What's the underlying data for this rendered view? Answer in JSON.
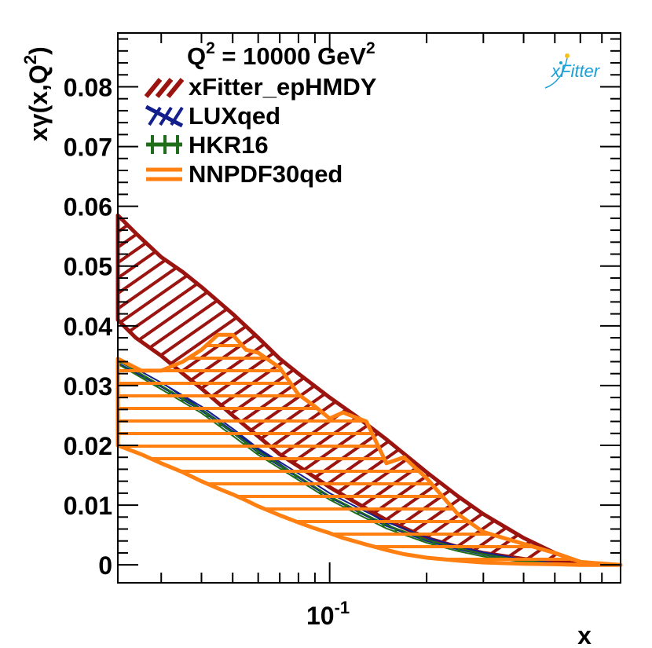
{
  "chart_data": {
    "type": "area",
    "title": "Q^2 = 10000 GeV^2",
    "title_parts": {
      "q": "Q",
      "exp": "2",
      "mid": " = 10000 GeV",
      "exp2": "2"
    },
    "xlabel": "x",
    "ylabel": {
      "base": "xγ(x,Q",
      "exp": "2",
      "close": ")"
    },
    "xscale": "log",
    "xlim": [
      0.022,
      0.8
    ],
    "ylim": [
      -0.003,
      0.089
    ],
    "yticks": [
      0,
      0.01,
      0.02,
      0.03,
      0.04,
      0.05,
      0.06,
      0.07,
      0.08
    ],
    "ytick_labels": [
      "0",
      "0.01",
      "0.02",
      "0.03",
      "0.04",
      "0.05",
      "0.06",
      "0.07",
      "0.08"
    ],
    "xtick_major_label": {
      "base": "10",
      "exp": "-1"
    },
    "legend_position": "top-left",
    "logo": {
      "x": "x",
      "rest": "Fitter"
    },
    "series": [
      {
        "name": "xFitter_epHMDY",
        "color": "#9b1410",
        "hatch": "diagonal",
        "x": [
          0.022,
          0.025,
          0.03,
          0.035,
          0.04,
          0.05,
          0.06,
          0.07,
          0.08,
          0.1,
          0.12,
          0.15,
          0.2,
          0.25,
          0.3,
          0.4,
          0.5,
          0.6
        ],
        "upper": [
          0.0585,
          0.0555,
          0.0515,
          0.049,
          0.0465,
          0.042,
          0.038,
          0.0345,
          0.032,
          0.028,
          0.025,
          0.021,
          0.0155,
          0.0115,
          0.0085,
          0.0045,
          0.002,
          0.0005
        ],
        "lower": [
          0.041,
          0.038,
          0.035,
          0.032,
          0.0295,
          0.025,
          0.0215,
          0.0185,
          0.0165,
          0.013,
          0.0105,
          0.0075,
          0.0045,
          0.003,
          0.002,
          0.001,
          0.0005,
          0.0002
        ]
      },
      {
        "name": "LUXqed",
        "color": "#131f8c",
        "hatch": "cross",
        "x": [
          0.022,
          0.03,
          0.04,
          0.05,
          0.06,
          0.08,
          0.1,
          0.12,
          0.15,
          0.2,
          0.25,
          0.3,
          0.4,
          0.5,
          0.6
        ],
        "upper": [
          0.0345,
          0.0305,
          0.0265,
          0.0228,
          0.0195,
          0.0153,
          0.012,
          0.0098,
          0.0072,
          0.0046,
          0.0031,
          0.0021,
          0.0009,
          0.0003,
          0.0001
        ],
        "lower": [
          0.0338,
          0.0298,
          0.0258,
          0.0221,
          0.0188,
          0.0146,
          0.0113,
          0.0091,
          0.0065,
          0.004,
          0.0026,
          0.0017,
          0.0006,
          0.0001,
          0.0
        ]
      },
      {
        "name": "HKR16",
        "color": "#1f6e1a",
        "hatch": "vertical",
        "x": [
          0.022,
          0.03,
          0.04,
          0.05,
          0.06,
          0.08,
          0.1,
          0.12,
          0.15,
          0.2,
          0.25,
          0.3,
          0.4,
          0.5,
          0.6
        ],
        "upper": [
          0.0342,
          0.03,
          0.026,
          0.0222,
          0.019,
          0.0148,
          0.0115,
          0.0093,
          0.0067,
          0.0042,
          0.0028,
          0.0018,
          0.0007,
          0.0002,
          0.0001
        ],
        "lower": [
          0.0336,
          0.0294,
          0.0254,
          0.0216,
          0.0184,
          0.0142,
          0.0109,
          0.0087,
          0.0061,
          0.0037,
          0.0023,
          0.0014,
          0.0005,
          0.0001,
          0.0
        ]
      },
      {
        "name": "NNPDF30qed",
        "color": "#ff7f10",
        "hatch": "horizontal",
        "x": [
          0.022,
          0.026,
          0.03,
          0.035,
          0.04,
          0.045,
          0.05,
          0.055,
          0.06,
          0.07,
          0.08,
          0.09,
          0.1,
          0.11,
          0.13,
          0.15,
          0.17,
          0.2,
          0.25,
          0.3,
          0.4,
          0.5,
          0.6,
          0.8
        ],
        "upper": [
          0.0345,
          0.0325,
          0.0325,
          0.034,
          0.036,
          0.0385,
          0.0385,
          0.036,
          0.0355,
          0.033,
          0.0285,
          0.0265,
          0.0245,
          0.0255,
          0.024,
          0.017,
          0.018,
          0.0145,
          0.0085,
          0.0055,
          0.0035,
          0.002,
          0.0005,
          0.0
        ],
        "lower": [
          0.02,
          0.0185,
          0.017,
          0.0155,
          0.014,
          0.0128,
          0.0118,
          0.0108,
          0.0098,
          0.0083,
          0.0071,
          0.0061,
          0.0053,
          0.0045,
          0.0034,
          0.0025,
          0.0018,
          0.0012,
          0.0007,
          0.0004,
          0.0002,
          0.0001,
          0.0,
          0.0
        ]
      }
    ]
  }
}
